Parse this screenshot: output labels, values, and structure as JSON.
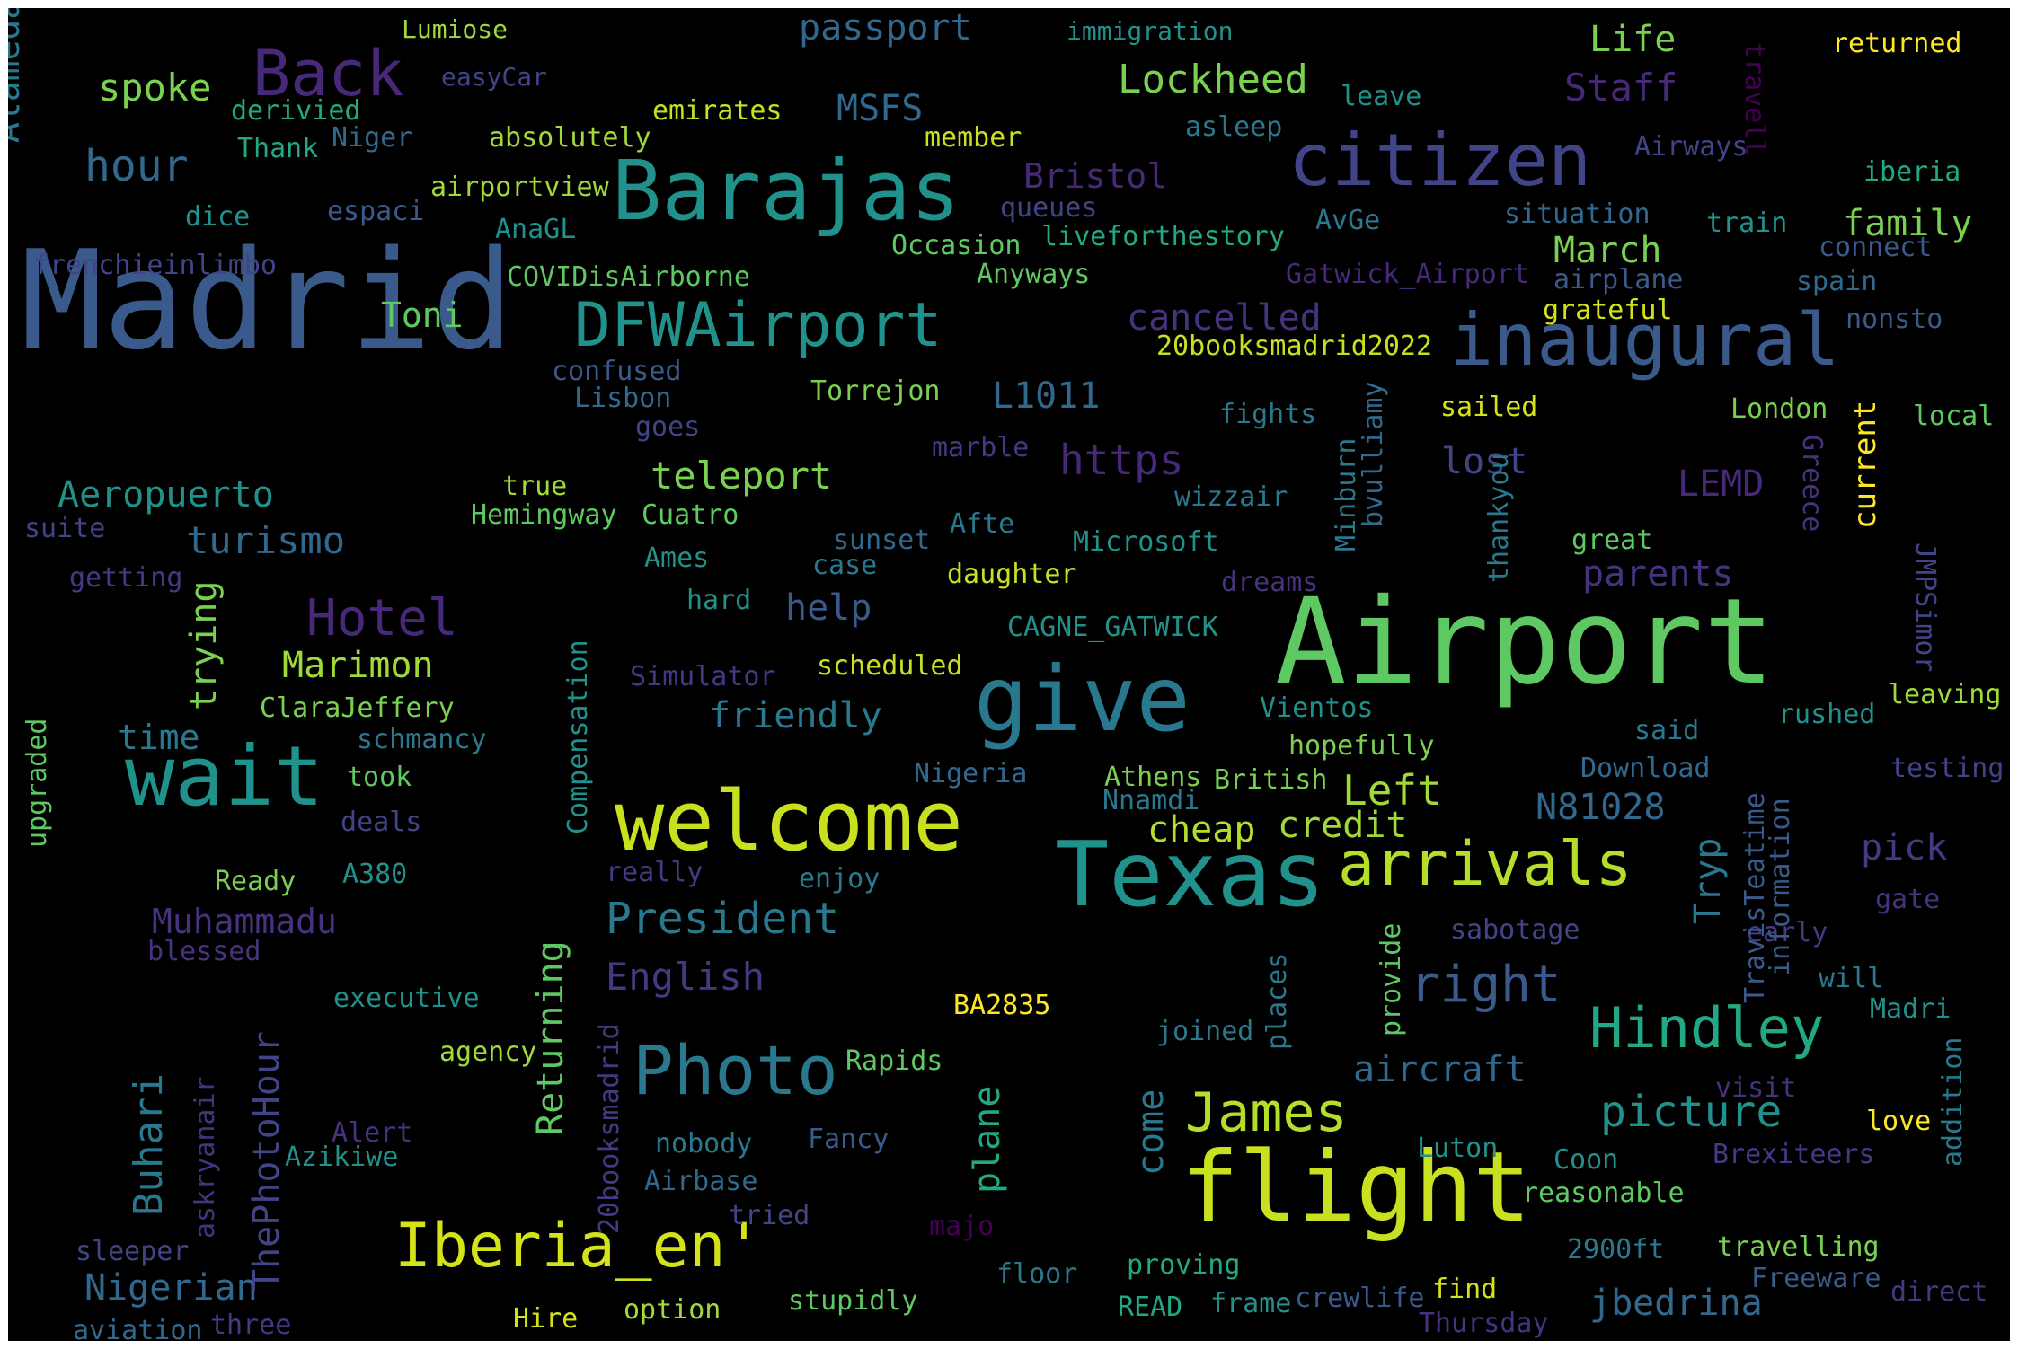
{
  "words": [
    {
      "text": "Madrid",
      "color": "#3b5a8c"
    },
    {
      "text": "Airport",
      "color": "#5ec962"
    },
    {
      "text": "Barajas",
      "color": "#21918c"
    },
    {
      "text": "flight",
      "color": "#c8e020"
    },
    {
      "text": "Texas",
      "color": "#21918c"
    },
    {
      "text": "give",
      "color": "#2a788e"
    },
    {
      "text": "welcome",
      "color": "#c8e020"
    },
    {
      "text": "wait",
      "color": "#21918c"
    },
    {
      "text": "citizen",
      "color": "#414487"
    },
    {
      "text": "inaugural",
      "color": "#3b5a8c"
    },
    {
      "text": "DFWAirport",
      "color": "#21918c"
    },
    {
      "text": "Iberia_en'",
      "color": "#d4e21a"
    },
    {
      "text": "arrivals",
      "color": "#b5de2b"
    },
    {
      "text": "Photo",
      "color": "#2a788e"
    },
    {
      "text": "Hindley",
      "color": "#22a884"
    },
    {
      "text": "James",
      "color": "#b5de2b"
    },
    {
      "text": "Back",
      "color": "#482878"
    },
    {
      "text": "Hotel",
      "color": "#482878"
    },
    {
      "text": "right",
      "color": "#3b5a8c"
    },
    {
      "text": "President",
      "color": "#2a788e"
    },
    {
      "text": "picture",
      "color": "#21918c"
    },
    {
      "text": "passport",
      "color": "#31688e"
    },
    {
      "text": "Lockheed",
      "color": "#7ad151"
    },
    {
      "text": "hour",
      "color": "#31688e"
    },
    {
      "text": "spoke",
      "color": "#7ad151"
    },
    {
      "text": "Aeropuerto",
      "color": "#21918c"
    },
    {
      "text": "teleport",
      "color": "#7ad151"
    },
    {
      "text": "turismo",
      "color": "#31688e"
    },
    {
      "text": "Marimon",
      "color": "#a0da39"
    },
    {
      "text": "friendly",
      "color": "#2a788e"
    },
    {
      "text": "English",
      "color": "#443983"
    },
    {
      "text": "Muhammadu",
      "color": "#46327e"
    },
    {
      "text": "Nigerian",
      "color": "#31688e"
    },
    {
      "text": "Buhari",
      "color": "#2a788e"
    },
    {
      "text": "ThePhotoHour",
      "color": "#414487"
    },
    {
      "text": "Returning",
      "color": "#5ec962"
    },
    {
      "text": "aircraft",
      "color": "#31688e"
    },
    {
      "text": "plane",
      "color": "#22a884"
    },
    {
      "text": "come",
      "color": "#2a788e"
    },
    {
      "text": "cheap",
      "color": "#b5de2b"
    },
    {
      "text": "credit",
      "color": "#a0da39"
    },
    {
      "text": "Left",
      "color": "#a0da39"
    },
    {
      "text": "N81028",
      "color": "#31688e"
    },
    {
      "text": "pick",
      "color": "#443983"
    },
    {
      "text": "Tryp",
      "color": "#2a788e"
    },
    {
      "text": "jbedrina",
      "color": "#31688e"
    },
    {
      "text": "Staff",
      "color": "#482878"
    },
    {
      "text": "Life",
      "color": "#7ad151"
    },
    {
      "text": "family",
      "color": "#7ad151"
    },
    {
      "text": "March",
      "color": "#7ad151"
    },
    {
      "text": "cancelled",
      "color": "#46327e"
    },
    {
      "text": "L1011",
      "color": "#31688e"
    },
    {
      "text": "https",
      "color": "#482878"
    },
    {
      "text": "lost",
      "color": "#414487"
    },
    {
      "text": "LEMD",
      "color": "#482878"
    },
    {
      "text": "parents",
      "color": "#46327e"
    },
    {
      "text": "Bristol",
      "color": "#482878"
    },
    {
      "text": "MSFS",
      "color": "#31688e"
    },
    {
      "text": "help",
      "color": "#3b5a8c"
    },
    {
      "text": "time",
      "color": "#2a788e"
    },
    {
      "text": "trying",
      "color": "#7ad151"
    },
    {
      "text": "Toni",
      "color": "#5ec962"
    },
    {
      "text": "Alameda",
      "color": "#2a788e"
    },
    {
      "text": "Lumiose",
      "color": "#a0da39"
    },
    {
      "text": "easyCar",
      "color": "#414487"
    },
    {
      "text": "immigration",
      "color": "#21918c"
    },
    {
      "text": "returned",
      "color": "#fde725"
    },
    {
      "text": "travell",
      "color": "#440154"
    },
    {
      "text": "derivied",
      "color": "#22a884"
    },
    {
      "text": "emirates",
      "color": "#c8e020"
    },
    {
      "text": "Niger",
      "color": "#31688e"
    },
    {
      "text": "absolutely",
      "color": "#a0da39"
    },
    {
      "text": "member",
      "color": "#c8e020"
    },
    {
      "text": "leave",
      "color": "#21918c"
    },
    {
      "text": "asleep",
      "color": "#2a788e"
    },
    {
      "text": "Airways",
      "color": "#414487"
    },
    {
      "text": "iberia",
      "color": "#22a884"
    },
    {
      "text": "Thank",
      "color": "#22a884"
    },
    {
      "text": "airportview",
      "color": "#a0da39"
    },
    {
      "text": "queues",
      "color": "#414487"
    },
    {
      "text": "dice",
      "color": "#21918c"
    },
    {
      "text": "espaci",
      "color": "#3b5a8c"
    },
    {
      "text": "AnaGL",
      "color": "#21918c"
    },
    {
      "text": "Occasion",
      "color": "#5ec962"
    },
    {
      "text": "livefor thestory",
      "color": "#22a884"
    },
    {
      "text": "AvGe",
      "color": "#2a788e"
    },
    {
      "text": "situation",
      "color": "#31688e"
    },
    {
      "text": "train",
      "color": "#21918c"
    },
    {
      "text": "connect",
      "color": "#3b5a8c"
    },
    {
      "text": "frenchieinlimbo",
      "color": "#414487"
    },
    {
      "text": "COVIDisAirborne",
      "color": "#5ec962"
    },
    {
      "text": "Anyways",
      "color": "#5ec962"
    },
    {
      "text": "Gatwick_Airport",
      "color": "#482878"
    },
    {
      "text": "airplane",
      "color": "#3b5a8c"
    },
    {
      "text": "spain",
      "color": "#31688e"
    },
    {
      "text": "grateful",
      "color": "#d4e21a"
    },
    {
      "text": "nonsto",
      "color": "#3b5a8c"
    },
    {
      "text": "20booksmadrid2022",
      "color": "#c8e020"
    },
    {
      "text": "confused",
      "color": "#3b5a8c"
    },
    {
      "text": "Lisbon",
      "color": "#31688e"
    },
    {
      "text": "Torrejon",
      "color": "#7ad151"
    },
    {
      "text": "fights",
      "color": "#2a788e"
    },
    {
      "text": "sailed",
      "color": "#d4e21a"
    },
    {
      "text": "London",
      "color": "#7ad151"
    },
    {
      "text": "local",
      "color": "#5ec962"
    },
    {
      "text": "goes",
      "color": "#414487"
    },
    {
      "text": "marble",
      "color": "#443983"
    },
    {
      "text": "true",
      "color": "#a0da39"
    },
    {
      "text": "Hemingway",
      "color": "#5ec962"
    },
    {
      "text": "Cuatro",
      "color": "#5ec962"
    },
    {
      "text": "suite",
      "color": "#414487"
    },
    {
      "text": "Afte",
      "color": "#2a788e"
    },
    {
      "text": "sunset",
      "color": "#31688e"
    },
    {
      "text": "Microsoft",
      "color": "#21918c"
    },
    {
      "text": "wizzair",
      "color": "#2a788e"
    },
    {
      "text": "great",
      "color": "#5ec962"
    },
    {
      "text": "Ames",
      "color": "#21918c"
    },
    {
      "text": "case",
      "color": "#2a788e"
    },
    {
      "text": "daughter",
      "color": "#c8e020"
    },
    {
      "text": "dreams",
      "color": "#46327e"
    },
    {
      "text": "getting",
      "color": "#443983"
    },
    {
      "text": "hard",
      "color": "#21918c"
    },
    {
      "text": "CAGNE_GATWICK",
      "color": "#21918c"
    },
    {
      "text": "Simulator",
      "color": "#443983"
    },
    {
      "text": "scheduled",
      "color": "#c8e020"
    },
    {
      "text": "ClaraJeffery",
      "color": "#7ad151"
    },
    {
      "text": "schmancy",
      "color": "#2a788e"
    },
    {
      "text": "Vientos",
      "color": "#21918c"
    },
    {
      "text": "hopefully",
      "color": "#7ad151"
    },
    {
      "text": "said",
      "color": "#2a788e"
    },
    {
      "text": "rushed",
      "color": "#21918c"
    },
    {
      "text": "leaving",
      "color": "#a0da39"
    },
    {
      "text": "took",
      "color": "#5ec962"
    },
    {
      "text": "Nigeria",
      "color": "#31688e"
    },
    {
      "text": "Athens",
      "color": "#7ad151"
    },
    {
      "text": "British",
      "color": "#7ad151"
    },
    {
      "text": "Nnamdi",
      "color": "#2a788e"
    },
    {
      "text": "Download",
      "color": "#31688e"
    },
    {
      "text": "testing",
      "color": "#414487"
    },
    {
      "text": "deals",
      "color": "#414487"
    },
    {
      "text": "Compensation",
      "color": "#21918c"
    },
    {
      "text": "upgraded",
      "color": "#5ec962"
    },
    {
      "text": "Ready",
      "color": "#7ad151"
    },
    {
      "text": "A380",
      "color": "#21918c"
    },
    {
      "text": "really",
      "color": "#443983"
    },
    {
      "text": "enjoy",
      "color": "#2a788e"
    },
    {
      "text": "gate",
      "color": "#46327e"
    },
    {
      "text": "blessed",
      "color": "#46327e"
    },
    {
      "text": "sabotage",
      "color": "#414487"
    },
    {
      "text": "early",
      "color": "#443983"
    },
    {
      "text": "information",
      "color": "#3b5a8c"
    },
    {
      "text": "TravisTeatime",
      "color": "#3b5a8c"
    },
    {
      "text": "will",
      "color": "#2a788e"
    },
    {
      "text": "Madri",
      "color": "#21918c"
    },
    {
      "text": "executive",
      "color": "#21918c"
    },
    {
      "text": "BA2835",
      "color": "#fde725"
    },
    {
      "text": "provide",
      "color": "#5ec962"
    },
    {
      "text": "places",
      "color": "#2a788e"
    },
    {
      "text": "joined",
      "color": "#2a788e"
    },
    {
      "text": "agency",
      "color": "#a0da39"
    },
    {
      "text": "Rapids",
      "color": "#5ec962"
    },
    {
      "text": "visit",
      "color": "#46327e"
    },
    {
      "text": "addition",
      "color": "#2a788e"
    },
    {
      "text": "love",
      "color": "#fde725"
    },
    {
      "text": "20booksmadrid",
      "color": "#443983"
    },
    {
      "text": "Alert",
      "color": "#46327e"
    },
    {
      "text": "askryanair",
      "color": "#46327e"
    },
    {
      "text": "Azikiwe",
      "color": "#21918c"
    },
    {
      "text": "nobody",
      "color": "#2a788e"
    },
    {
      "text": "Fancy",
      "color": "#3b5a8c"
    },
    {
      "text": "Luton",
      "color": "#21918c"
    },
    {
      "text": "Coon",
      "color": "#21918c"
    },
    {
      "text": "Brexiteers",
      "color": "#443983"
    },
    {
      "text": "Airbase",
      "color": "#31688e"
    },
    {
      "text": "reasonable",
      "color": "#5ec962"
    },
    {
      "text": "tried",
      "color": "#414487"
    },
    {
      "text": "majo",
      "color": "#440154"
    },
    {
      "text": "sleeper",
      "color": "#414487"
    },
    {
      "text": "2900ft",
      "color": "#2a788e"
    },
    {
      "text": "travelling",
      "color": "#7ad151"
    },
    {
      "text": "proving",
      "color": "#22a884"
    },
    {
      "text": "floor",
      "color": "#2a788e"
    },
    {
      "text": "Freeware",
      "color": "#3b5a8c"
    },
    {
      "text": "direct",
      "color": "#443983"
    },
    {
      "text": "find",
      "color": "#d4e21a"
    },
    {
      "text": "frame",
      "color": "#21918c"
    },
    {
      "text": "crewlife",
      "color": "#3b5a8c"
    },
    {
      "text": "stupidly",
      "color": "#5ec962"
    },
    {
      "text": "READ",
      "color": "#22a884"
    },
    {
      "text": "Thursday",
      "color": "#46327e"
    },
    {
      "text": "aviation",
      "color": "#31688e"
    },
    {
      "text": "three",
      "color": "#443983"
    },
    {
      "text": "Hire",
      "color": "#d4e21a"
    },
    {
      "text": "option",
      "color": "#a0da39"
    },
    {
      "text": "thankyou",
      "color": "#2a788e"
    },
    {
      "text": "Minburn",
      "color": "#2a788e"
    },
    {
      "text": "bvulliamy",
      "color": "#31688e"
    },
    {
      "text": "Greece",
      "color": "#46327e"
    },
    {
      "text": "current",
      "color": "#fde725"
    },
    {
      "text": "JMPSimor",
      "color": "#414487"
    }
  ]
}
